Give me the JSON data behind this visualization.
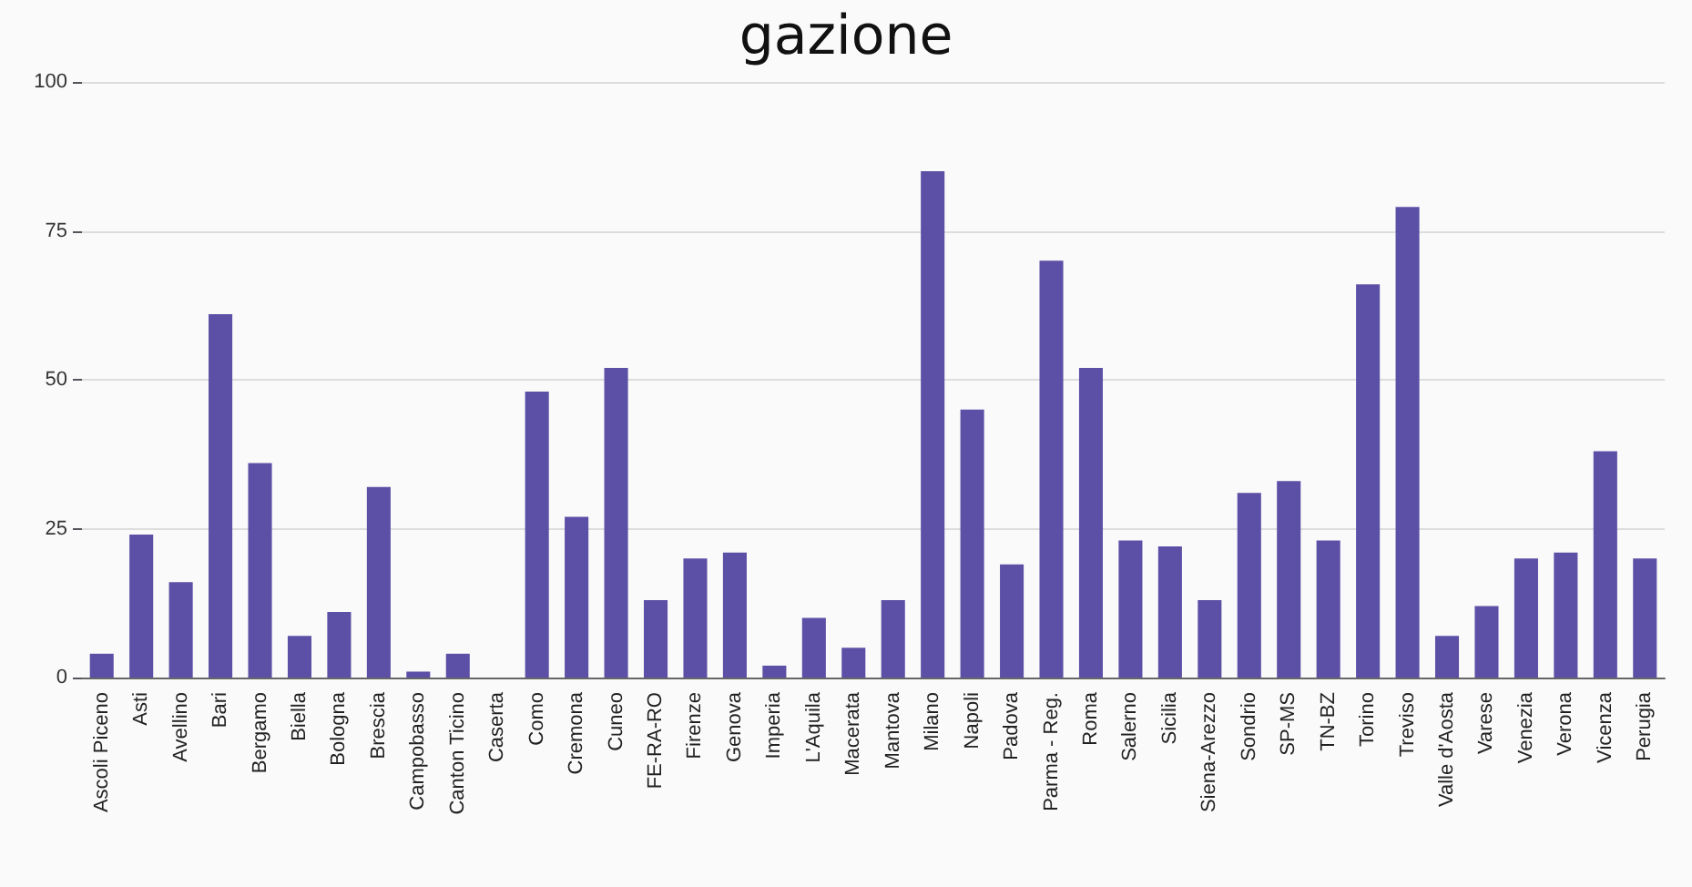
{
  "chart_data": {
    "type": "bar",
    "title": "gazione",
    "categories": [
      "Ascoli Piceno",
      "Asti",
      "Avellino",
      "Bari",
      "Bergamo",
      "Biella",
      "Bologna",
      "Brescia",
      "Campobasso",
      "Canton Ticino",
      "Caserta",
      "Como",
      "Cremona",
      "Cuneo",
      "FE-RA-RO",
      "Firenze",
      "Genova",
      "Imperia",
      "L'Aquila",
      "Macerata",
      "Mantova",
      "Milano",
      "Napoli",
      "Padova",
      "Parma - Reg.",
      "Roma",
      "Salerno",
      "Sicilia",
      "Siena-Arezzo",
      "Sondrio",
      "SP-MS",
      "TN-BZ",
      "Torino",
      "Treviso",
      "Valle d'Aosta",
      "Varese",
      "Venezia",
      "Verona",
      "Vicenza",
      "Perugia"
    ],
    "values": [
      4,
      24,
      16,
      61,
      36,
      7,
      11,
      32,
      1,
      4,
      0,
      48,
      27,
      52,
      13,
      20,
      21,
      2,
      10,
      5,
      13,
      85,
      45,
      19,
      70,
      52,
      23,
      22,
      13,
      31,
      33,
      23,
      66,
      79,
      7,
      12,
      20,
      21,
      38,
      20
    ],
    "color": "#5c4fa6",
    "ylim": [
      0,
      100
    ],
    "yticks": [
      0,
      25,
      50,
      75,
      100
    ],
    "grid": true
  }
}
